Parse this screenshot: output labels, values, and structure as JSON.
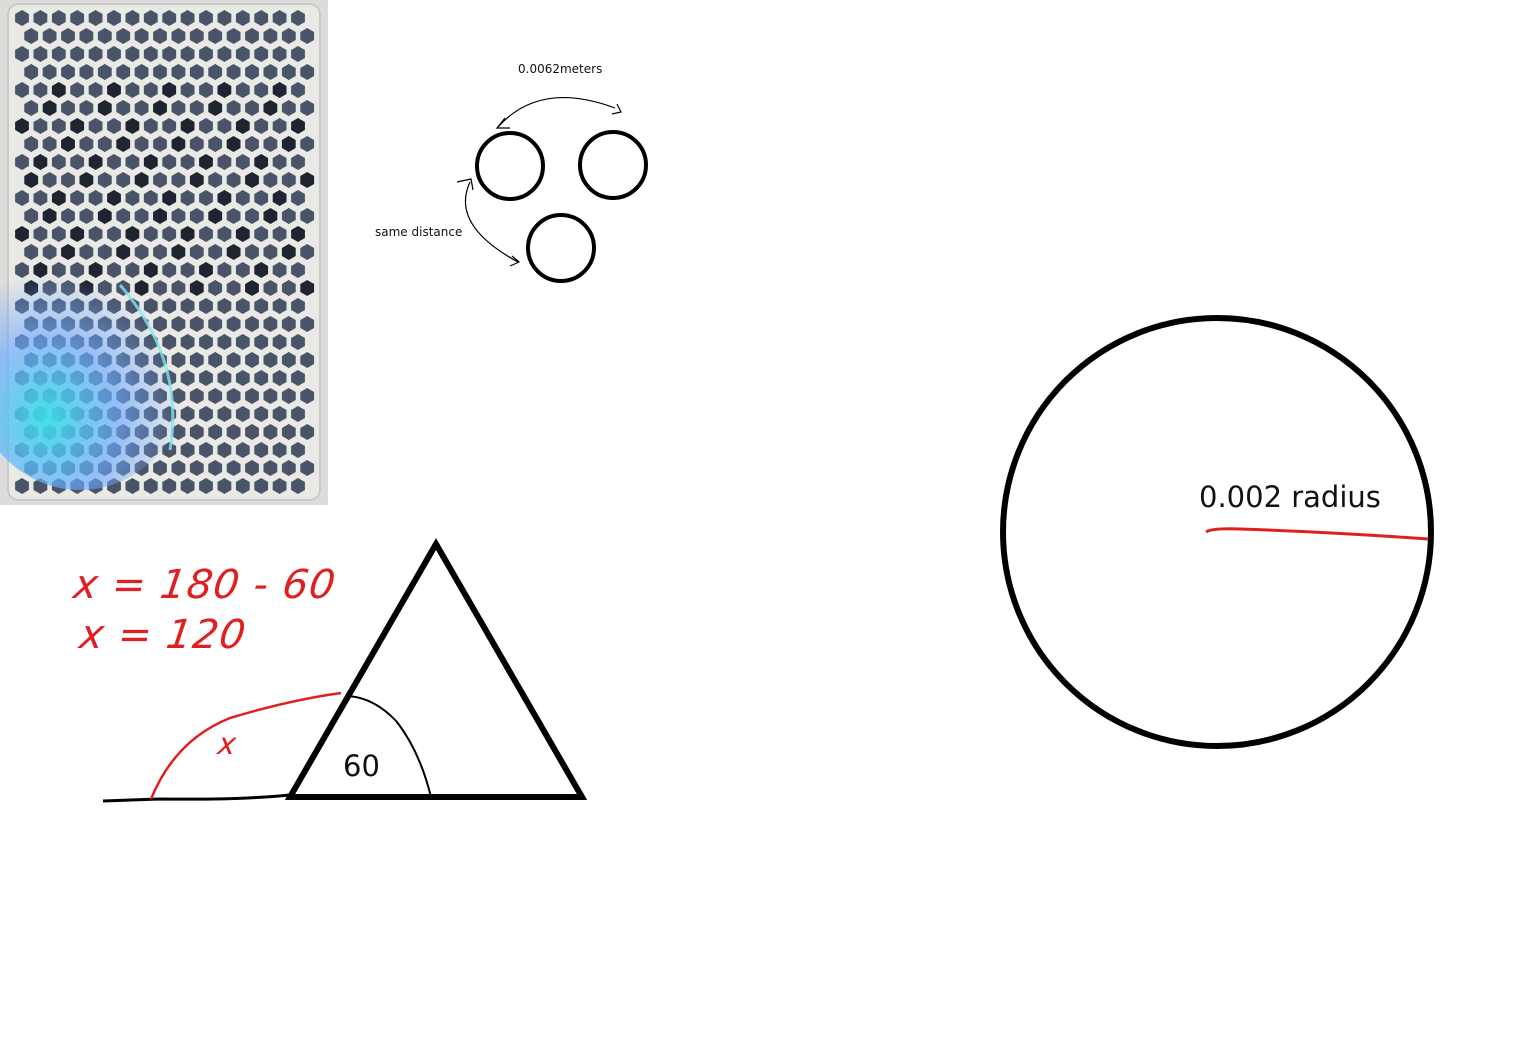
{
  "labels": {
    "distance": "0.0062meters",
    "same_distance": "same distance",
    "angle": "60",
    "radius": "0.002 radius",
    "eq1": "x = 180 - 60",
    "eq2": "x = 120",
    "x_mark": "x"
  },
  "colors": {
    "ink": "#000000",
    "annotation": "#e02020",
    "panel_bg": "#e6e6e3",
    "hole": "#4a5468"
  }
}
